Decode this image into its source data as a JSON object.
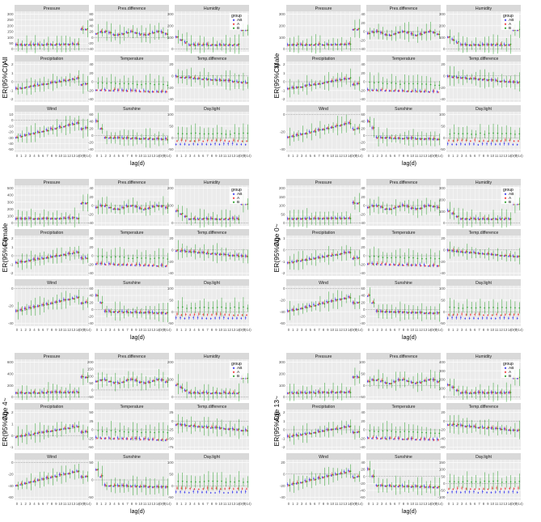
{
  "chart_data": {
    "type": "scatter",
    "y_axis_label": "ER(95%CI)",
    "x_axis_label": "lag(d)",
    "x_tick_labels": [
      "0",
      "1",
      "2",
      "3",
      "4",
      "5",
      "6",
      "7",
      "8",
      "9",
      "10",
      "11",
      "12",
      "13",
      "14",
      "(0-7)",
      "(0-14)"
    ],
    "legend": {
      "title": "group",
      "entries": [
        "AB",
        "A",
        "B"
      ]
    },
    "colors": {
      "AB": "#3b3bf0",
      "A": "#f03b3b",
      "B": "#2ca02c",
      "panel_bg": "#ebebeb",
      "strip_bg": "#d9d9d9",
      "grid": "#ffffff"
    },
    "panel_titles": [
      "Pressure",
      "Pres.difference",
      "Humidity",
      "Precipitation",
      "Temperature",
      "Temp.difference",
      "Wind",
      "Sunshine",
      "Day.light"
    ],
    "groups": [
      {
        "label": "All",
        "y_ticks": {
          "Pressure": [
            0,
            50,
            100,
            150,
            200,
            250,
            300
          ],
          "Pres.difference": [
            -40,
            -20,
            0,
            20,
            40,
            60,
            80
          ],
          "Humidity": [
            0,
            100,
            200,
            300
          ],
          "Precipitation": [
            -2,
            -1,
            0,
            1,
            2
          ],
          "Temperature": [
            -40,
            -20,
            0,
            20,
            40
          ],
          "Temp.difference": [
            -40,
            -20,
            0,
            20
          ],
          "Wind": [
            -50,
            -40,
            -30,
            -20,
            -10,
            0,
            10
          ],
          "Sunshine": [
            -40,
            -20,
            0,
            20,
            40,
            60
          ],
          "Day.light": [
            -50,
            0,
            50,
            100
          ]
        }
      },
      {
        "label": "Male",
        "y_ticks": {
          "Pressure": [
            0,
            100,
            200,
            300
          ],
          "Pres.difference": [
            -40,
            -20,
            0,
            20,
            40
          ],
          "Humidity": [
            0,
            100,
            200,
            300
          ],
          "Precipitation": [
            -2,
            -1,
            0,
            1,
            2
          ],
          "Temperature": [
            -40,
            -20,
            0,
            20,
            40
          ],
          "Temp.difference": [
            -40,
            -20,
            0,
            20
          ],
          "Wind": [
            -40,
            -20,
            0
          ],
          "Sunshine": [
            -40,
            -20,
            0,
            20,
            40,
            60
          ],
          "Day.light": [
            -50,
            0,
            50,
            100
          ]
        }
      },
      {
        "label": "Female",
        "y_ticks": {
          "Pressure": [
            0,
            100,
            200,
            300,
            400,
            500
          ],
          "Pres.difference": [
            -40,
            -20,
            0,
            20,
            40
          ],
          "Humidity": [
            0,
            100,
            200
          ],
          "Precipitation": [
            -2,
            -1,
            0,
            1,
            2
          ],
          "Temperature": [
            -40,
            -20,
            0,
            20,
            40
          ],
          "Temp.difference": [
            -40,
            -20,
            0,
            20
          ],
          "Wind": [
            -40,
            -20,
            0
          ],
          "Sunshine": [
            -40,
            -20,
            0,
            20,
            40,
            60
          ],
          "Day.light": [
            -50,
            0,
            50,
            100
          ]
        }
      },
      {
        "label": "Age 0~",
        "y_ticks": {
          "Pressure": [
            0,
            50,
            100,
            150,
            200
          ],
          "Pres.difference": [
            -40,
            -20,
            0,
            20,
            40
          ],
          "Humidity": [
            0,
            100,
            200,
            300
          ],
          "Precipitation": [
            -2,
            -1,
            0,
            1
          ],
          "Temperature": [
            -40,
            -20,
            0,
            20,
            40
          ],
          "Temp.difference": [
            -40,
            -20,
            0,
            20
          ],
          "Wind": [
            -60,
            -40,
            -20,
            0
          ],
          "Sunshine": [
            -40,
            -20,
            0,
            20,
            40,
            60
          ],
          "Day.light": [
            -50,
            0,
            50,
            100
          ]
        }
      },
      {
        "label": "Age 4~",
        "y_ticks": {
          "Pressure": [
            0,
            200,
            400,
            600
          ],
          "Pres.difference": [
            -50,
            0,
            50,
            100,
            150,
            200
          ],
          "Humidity": [
            0,
            100,
            200
          ],
          "Precipitation": [
            -1,
            0,
            1,
            2
          ],
          "Temperature": [
            -50,
            -25,
            0,
            25,
            50
          ],
          "Temp.difference": [
            -75,
            -50,
            -25,
            0,
            25
          ],
          "Wind": [
            -60,
            -40,
            -20,
            0
          ],
          "Sunshine": [
            -50,
            0,
            50
          ],
          "Day.light": [
            -50,
            0,
            50,
            100
          ]
        }
      },
      {
        "label": "Age 13~",
        "y_ticks": {
          "Pressure": [
            0,
            100,
            200,
            300
          ],
          "Pres.difference": [
            -50,
            0,
            50,
            100
          ],
          "Humidity": [
            0,
            100,
            200,
            300,
            400
          ],
          "Precipitation": [
            -2,
            -1,
            0,
            1,
            2
          ],
          "Temperature": [
            -40,
            -20,
            0,
            20,
            40
          ],
          "Temp.difference": [
            -60,
            -40,
            -20,
            0,
            20
          ],
          "Wind": [
            -40,
            -20,
            0,
            20
          ],
          "Sunshine": [
            -60,
            -40,
            -20,
            0,
            20,
            40
          ],
          "Day.light": [
            -100,
            -50,
            0,
            50,
            100,
            150
          ]
        }
      }
    ]
  }
}
